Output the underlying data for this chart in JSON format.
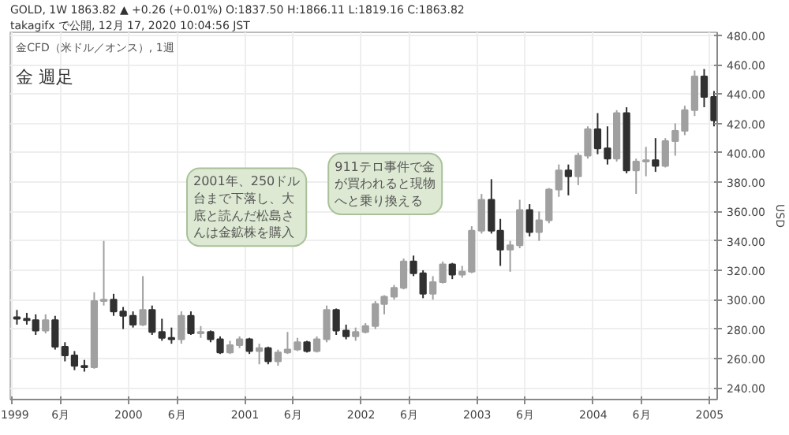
{
  "chart_data": {
    "type": "candlestick",
    "title": "金 週足",
    "subtitle": "金CFD（米ドル／オンス）, 1週",
    "ylabel": "USD",
    "annotations": [
      "takagifx で公開, 12月 17, 2020 10:04:56 JST",
      "GOLD, 1W 1863.82 ▲ +0.26 (+0.01%) O:1837.50 H:1866.11 L:1819.16 C:1863.82",
      "2001年、250ドル台まで下落し、大底と読んだ松島さんは金鉱株を購入",
      "911テロ事件で金が買われると現物へと乗り換える"
    ],
    "x": [
      "1999-01-15",
      "1999-02-15",
      "1999-03-15",
      "1999-04-15",
      "1999-05-15",
      "1999-06-15",
      "1999-07-15",
      "1999-08-15",
      "1999-09-15",
      "1999-10-15",
      "1999-11-15",
      "1999-12-15",
      "2000-01-15",
      "2000-02-15",
      "2000-03-15",
      "2000-04-15",
      "2000-05-15",
      "2000-06-15",
      "2000-07-15",
      "2000-08-15",
      "2000-09-15",
      "2000-10-15",
      "2000-11-15",
      "2000-12-15",
      "2001-01-15",
      "2001-02-15",
      "2001-03-15",
      "2001-04-15",
      "2001-05-15",
      "2001-06-15",
      "2001-07-15",
      "2001-08-15",
      "2001-09-15",
      "2001-10-15",
      "2001-11-15",
      "2001-12-15",
      "2002-01-15",
      "2002-02-15",
      "2002-03-15",
      "2002-04-15",
      "2002-05-15",
      "2002-06-15",
      "2002-07-15",
      "2002-08-15",
      "2002-09-15",
      "2002-10-15",
      "2002-11-15",
      "2002-12-15",
      "2003-01-15",
      "2003-02-15",
      "2003-03-15",
      "2003-04-15",
      "2003-05-15",
      "2003-06-15",
      "2003-07-15",
      "2003-08-15",
      "2003-09-15",
      "2003-10-15",
      "2003-11-15",
      "2003-12-15",
      "2004-01-15",
      "2004-02-15",
      "2004-03-15",
      "2004-04-15",
      "2004-05-15",
      "2004-06-15",
      "2004-07-15",
      "2004-08-15",
      "2004-09-15",
      "2004-10-15",
      "2004-11-15",
      "2004-12-15",
      "2005-01-15"
    ],
    "ohlc": [
      [
        288,
        293,
        283,
        287
      ],
      [
        287,
        291,
        283,
        286
      ],
      [
        286,
        290,
        276,
        279
      ],
      [
        279,
        290,
        277,
        286
      ],
      [
        286,
        289,
        266,
        268
      ],
      [
        268,
        271,
        258,
        262
      ],
      [
        262,
        265,
        252,
        255
      ],
      [
        255,
        259,
        251,
        254
      ],
      [
        254,
        305,
        253,
        299
      ],
      [
        299,
        340,
        296,
        300
      ],
      [
        300,
        304,
        289,
        292
      ],
      [
        292,
        295,
        280,
        289
      ],
      [
        289,
        292,
        281,
        283
      ],
      [
        283,
        316,
        282,
        293
      ],
      [
        293,
        296,
        276,
        278
      ],
      [
        278,
        287,
        272,
        274
      ],
      [
        274,
        281,
        270,
        273
      ],
      [
        273,
        292,
        270,
        289
      ],
      [
        289,
        292,
        276,
        277
      ],
      [
        277,
        282,
        274,
        278
      ],
      [
        278,
        279,
        271,
        273
      ],
      [
        273,
        275,
        263,
        264
      ],
      [
        264,
        272,
        263,
        269
      ],
      [
        269,
        275,
        267,
        273
      ],
      [
        273,
        274,
        263,
        265
      ],
      [
        265,
        270,
        256,
        267
      ],
      [
        267,
        268,
        256,
        258
      ],
      [
        258,
        266,
        255,
        264
      ],
      [
        264,
        278,
        263,
        266
      ],
      [
        266,
        274,
        265,
        271
      ],
      [
        271,
        272,
        264,
        265
      ],
      [
        265,
        275,
        264,
        273
      ],
      [
        273,
        296,
        271,
        293
      ],
      [
        293,
        294,
        276,
        279
      ],
      [
        279,
        283,
        273,
        275
      ],
      [
        275,
        281,
        272,
        278
      ],
      [
        278,
        284,
        277,
        282
      ],
      [
        282,
        299,
        280,
        297
      ],
      [
        297,
        303,
        290,
        302
      ],
      [
        302,
        310,
        300,
        308
      ],
      [
        308,
        328,
        307,
        326
      ],
      [
        326,
        330,
        316,
        318
      ],
      [
        318,
        320,
        301,
        304
      ],
      [
        304,
        316,
        300,
        312
      ],
      [
        312,
        326,
        311,
        324
      ],
      [
        324,
        325,
        314,
        317
      ],
      [
        317,
        323,
        315,
        319
      ],
      [
        319,
        350,
        318,
        347
      ],
      [
        347,
        372,
        345,
        368
      ],
      [
        368,
        382,
        345,
        347
      ],
      [
        347,
        355,
        323,
        334
      ],
      [
        334,
        340,
        319,
        337
      ],
      [
        337,
        368,
        335,
        361
      ],
      [
        361,
        365,
        343,
        346
      ],
      [
        346,
        360,
        340,
        354
      ],
      [
        354,
        376,
        352,
        375
      ],
      [
        375,
        392,
        370,
        388
      ],
      [
        388,
        392,
        371,
        384
      ],
      [
        384,
        400,
        378,
        398
      ],
      [
        398,
        418,
        396,
        416
      ],
      [
        416,
        427,
        399,
        403
      ],
      [
        403,
        418,
        392,
        396
      ],
      [
        396,
        429,
        394,
        427
      ],
      [
        427,
        431,
        386,
        388
      ],
      [
        388,
        396,
        372,
        394
      ],
      [
        394,
        404,
        384,
        395
      ],
      [
        395,
        410,
        387,
        391
      ],
      [
        391,
        410,
        390,
        408
      ],
      [
        408,
        420,
        398,
        415
      ],
      [
        415,
        432,
        412,
        429
      ],
      [
        429,
        456,
        425,
        452
      ],
      [
        452,
        457,
        431,
        438
      ],
      [
        438,
        442,
        418,
        422
      ]
    ],
    "colors": [
      "#303030",
      "#303030",
      "#303030",
      "#a0a0a0",
      "#303030",
      "#303030",
      "#303030",
      "#303030",
      "#a0a0a0",
      "#a0a0a0",
      "#303030",
      "#303030",
      "#303030",
      "#a0a0a0",
      "#303030",
      "#303030",
      "#303030",
      "#a0a0a0",
      "#303030",
      "#a0a0a0",
      "#303030",
      "#303030",
      "#a0a0a0",
      "#a0a0a0",
      "#303030",
      "#a0a0a0",
      "#303030",
      "#a0a0a0",
      "#a0a0a0",
      "#a0a0a0",
      "#303030",
      "#a0a0a0",
      "#a0a0a0",
      "#303030",
      "#303030",
      "#a0a0a0",
      "#a0a0a0",
      "#a0a0a0",
      "#a0a0a0",
      "#a0a0a0",
      "#a0a0a0",
      "#303030",
      "#303030",
      "#a0a0a0",
      "#a0a0a0",
      "#303030",
      "#a0a0a0",
      "#a0a0a0",
      "#a0a0a0",
      "#303030",
      "#303030",
      "#a0a0a0",
      "#a0a0a0",
      "#303030",
      "#a0a0a0",
      "#a0a0a0",
      "#a0a0a0",
      "#303030",
      "#a0a0a0",
      "#a0a0a0",
      "#303030",
      "#303030",
      "#a0a0a0",
      "#303030",
      "#a0a0a0",
      "#a0a0a0",
      "#303030",
      "#a0a0a0",
      "#a0a0a0",
      "#a0a0a0",
      "#a0a0a0",
      "#303030",
      "#303030"
    ],
    "xlim": [
      "1998-12-25",
      "2005-01-25"
    ],
    "xticks": [
      {
        "value": "1999-01-01",
        "label": "1999"
      },
      {
        "value": "1999-06-01",
        "label": "6月"
      },
      {
        "value": "2000-01-01",
        "label": "2000"
      },
      {
        "value": "2000-06-01",
        "label": "6月"
      },
      {
        "value": "2001-01-01",
        "label": "2001"
      },
      {
        "value": "2001-06-01",
        "label": "6月"
      },
      {
        "value": "2002-01-01",
        "label": "2002"
      },
      {
        "value": "2002-06-01",
        "label": "6月"
      },
      {
        "value": "2003-01-01",
        "label": "2003"
      },
      {
        "value": "2003-06-01",
        "label": "6月"
      },
      {
        "value": "2004-01-01",
        "label": "2004"
      },
      {
        "value": "2004-06-01",
        "label": "6月"
      },
      {
        "value": "2005-01-01",
        "label": "2005"
      }
    ],
    "ylim": [
      232,
      482
    ],
    "yticks": [
      {
        "value": 240,
        "label": "240.00"
      },
      {
        "value": 260,
        "label": "260.00"
      },
      {
        "value": 280,
        "label": "280.00"
      },
      {
        "value": 300,
        "label": "300.00"
      },
      {
        "value": 320,
        "label": "320.00"
      },
      {
        "value": 340,
        "label": "340.00"
      },
      {
        "value": 360,
        "label": "360.00"
      },
      {
        "value": 380,
        "label": "380.00"
      },
      {
        "value": 400,
        "label": "400.00"
      },
      {
        "value": 420,
        "label": "420.00"
      },
      {
        "value": 440,
        "label": "440.00"
      },
      {
        "value": 460,
        "label": "460.00"
      },
      {
        "value": 480,
        "label": "480.00"
      }
    ],
    "grid": true
  }
}
